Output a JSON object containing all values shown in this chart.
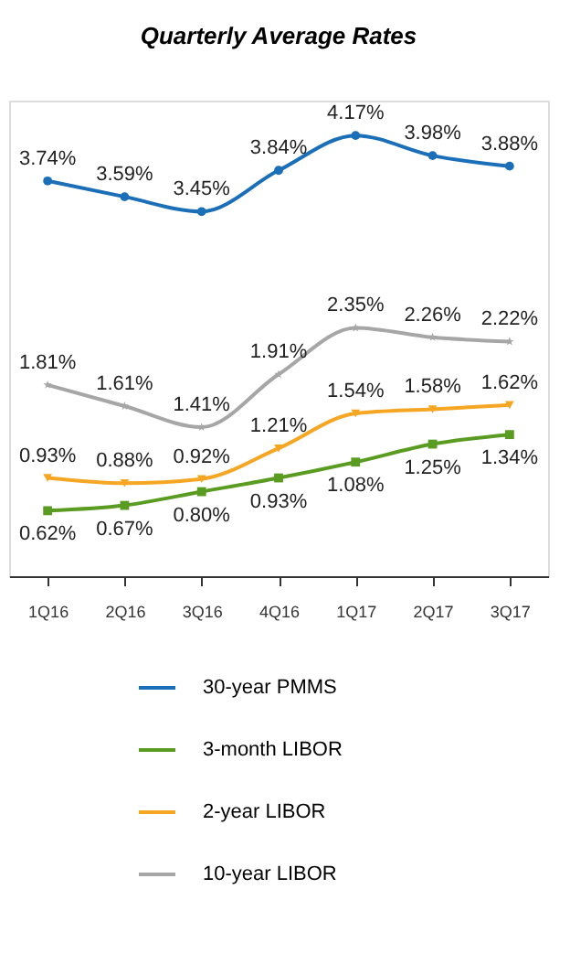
{
  "chart_data": {
    "type": "line",
    "title": "Quarterly Average Rates",
    "categories": [
      "1Q16",
      "2Q16",
      "3Q16",
      "4Q16",
      "1Q17",
      "2Q17",
      "3Q17"
    ],
    "ylim": [
      0,
      4.5
    ],
    "tick_labels": "x",
    "grid": false,
    "legend": "bottom",
    "line_style": "solid",
    "series": [
      {
        "name": "30-year PMMS",
        "color": "#1a6fb8",
        "marker": "circle",
        "values": [
          3.74,
          3.59,
          3.45,
          3.84,
          4.17,
          3.98,
          3.88
        ],
        "value_labels": [
          "3.74%",
          "3.59%",
          "3.45%",
          "3.84%",
          "4.17%",
          "3.98%",
          "3.88%"
        ]
      },
      {
        "name": "3-month LIBOR",
        "color": "#5a9b22",
        "marker": "square",
        "values": [
          0.62,
          0.67,
          0.8,
          0.93,
          1.08,
          1.25,
          1.34
        ],
        "value_labels": [
          "0.62%",
          "0.67%",
          "0.80%",
          "0.93%",
          "1.08%",
          "1.25%",
          "1.34%"
        ]
      },
      {
        "name": "2-year LIBOR",
        "color": "#f5a623",
        "marker": "triangle",
        "values": [
          0.93,
          0.88,
          0.92,
          1.21,
          1.54,
          1.58,
          1.62
        ],
        "value_labels": [
          "0.93%",
          "0.88%",
          "0.92%",
          "1.21%",
          "1.54%",
          "1.58%",
          "1.62%"
        ]
      },
      {
        "name": "10-year LIBOR",
        "color": "#a6a6a6",
        "marker": "star",
        "values": [
          1.81,
          1.61,
          1.41,
          1.91,
          2.35,
          2.26,
          2.22
        ],
        "value_labels": [
          "1.81%",
          "1.61%",
          "1.41%",
          "1.91%",
          "2.35%",
          "2.26%",
          "2.22%"
        ]
      }
    ]
  }
}
